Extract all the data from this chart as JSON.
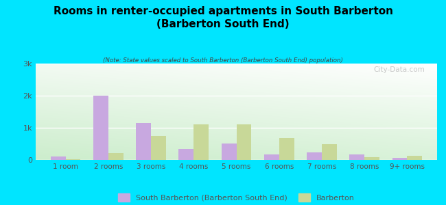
{
  "categories": [
    "1 room",
    "2 rooms",
    "3 rooms",
    "4 rooms",
    "5 rooms",
    "6 rooms",
    "7 rooms",
    "8 rooms",
    "9+ rooms"
  ],
  "south_barberton": [
    100,
    2000,
    1150,
    330,
    520,
    170,
    240,
    165,
    60
  ],
  "barberton": [
    30,
    220,
    750,
    1100,
    1100,
    680,
    480,
    80,
    130
  ],
  "title": "Rooms in renter-occupied apartments in South Barberton\n(Barberton South End)",
  "subtitle": "(Note: State values scaled to South Barberton (Barberton South End) population)",
  "south_barberton_color": "#c8a8e0",
  "barberton_color": "#c8d898",
  "background_color": "#00e5ff",
  "ylim": [
    0,
    3000
  ],
  "yticks": [
    0,
    1000,
    2000,
    3000
  ],
  "ytick_labels": [
    "0",
    "1k",
    "2k",
    "3k"
  ],
  "legend_south": "South Barberton (Barberton South End)",
  "legend_barberton": "Barberton",
  "watermark": "City-Data.com",
  "bar_width": 0.35
}
